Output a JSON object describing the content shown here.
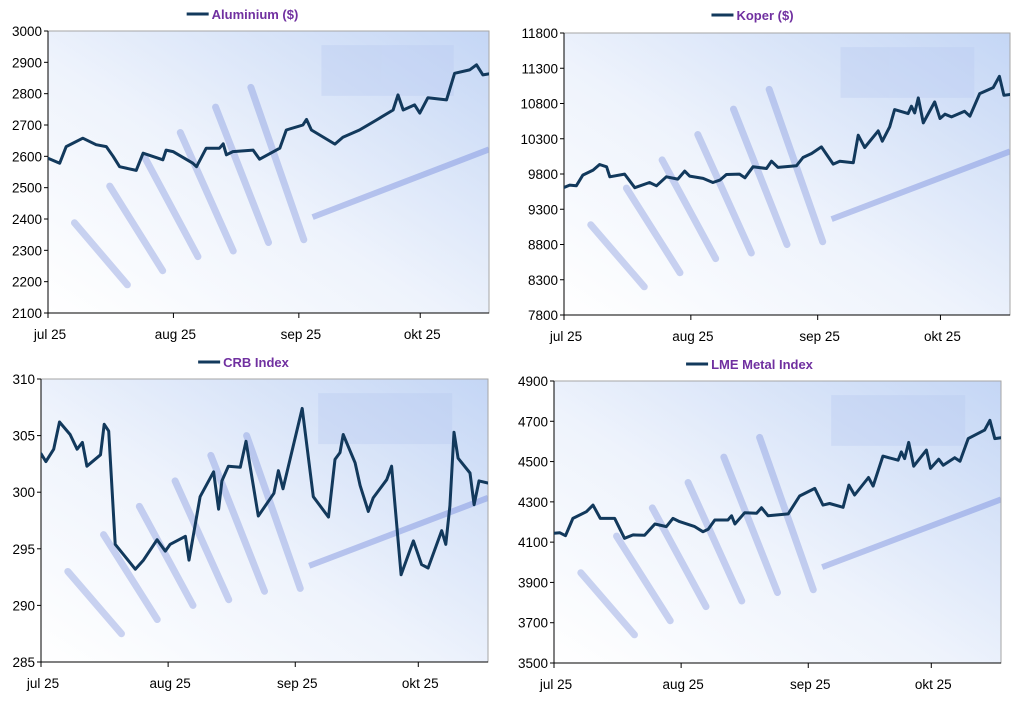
{
  "chart_data": [
    {
      "type": "line",
      "title": "Aluminium ($)",
      "legend": "top-center",
      "xlabel": "",
      "ylabel": "",
      "x_unit": "days since 1 jul",
      "xlim": [
        0,
        109
      ],
      "xticks": [
        {
          "x": 0,
          "label": "jul 25"
        },
        {
          "x": 31,
          "label": "aug 25"
        },
        {
          "x": 62,
          "label": "sep 25"
        },
        {
          "x": 92,
          "label": "okt 25"
        }
      ],
      "ylim": [
        2100,
        3000
      ],
      "yticks": [
        2100,
        2200,
        2300,
        2400,
        2500,
        2600,
        2700,
        2800,
        2900,
        3000
      ],
      "series": [
        {
          "name": "Aluminium ($)",
          "color": "#12395C",
          "x": [
            0,
            2.9,
            4.5,
            8.6,
            11.9,
            14.4,
            16.1,
            17.7,
            21.8,
            23.5,
            28.4,
            29.2,
            30.9,
            35.8,
            36.7,
            39.1,
            42.4,
            43.3,
            44.1,
            45.7,
            50.7,
            52.3,
            57.3,
            58.9,
            63,
            63.9,
            65.1,
            70.9,
            72.9,
            77,
            81.2,
            85.3,
            86.5,
            87.8,
            90.6,
            91.9,
            93.9,
            98.5,
            100.5,
            104.2,
            105.9,
            107.5,
            109
          ],
          "values": [
            2594,
            2578,
            2631,
            2658,
            2637,
            2631,
            2600,
            2567,
            2555,
            2610,
            2589,
            2620,
            2615,
            2578,
            2567,
            2626,
            2626,
            2640,
            2605,
            2615,
            2620,
            2591,
            2626,
            2684,
            2700,
            2718,
            2684,
            2639,
            2661,
            2684,
            2716,
            2748,
            2796,
            2748,
            2764,
            2738,
            2787,
            2780,
            2865,
            2876,
            2892,
            2860,
            2863
          ]
        }
      ]
    },
    {
      "type": "line",
      "title": "Koper ($)",
      "legend": "top-center",
      "xlabel": "",
      "ylabel": "",
      "x_unit": "days since 1 jul",
      "xlim": [
        0,
        109
      ],
      "xticks": [
        {
          "x": 0,
          "label": "jul 25"
        },
        {
          "x": 31,
          "label": "aug 25"
        },
        {
          "x": 62,
          "label": "sep 25"
        },
        {
          "x": 92,
          "label": "okt 25"
        }
      ],
      "ylim": [
        7800,
        11800
      ],
      "yticks": [
        7800,
        8300,
        8800,
        9300,
        9800,
        10300,
        10800,
        11300,
        11800
      ],
      "series": [
        {
          "name": "Koper ($)",
          "color": "#12395C",
          "x": [
            0,
            1.4,
            3,
            4.6,
            7.1,
            8.7,
            10.4,
            11.2,
            14.8,
            17.3,
            20.9,
            22.6,
            25,
            27.8,
            29.5,
            30.7,
            34,
            36.4,
            38.1,
            39.7,
            42.9,
            44.2,
            46.2,
            49.5,
            50.7,
            52.3,
            56.8,
            58.4,
            60.5,
            62.9,
            65.8,
            67.4,
            70.7,
            71.9,
            73.5,
            76.8,
            77.8,
            79.6,
            80.8,
            84.1,
            84.9,
            85.7,
            86.6,
            87.8,
            90.6,
            91.9,
            93.1,
            94.7,
            97.9,
            99.2,
            101.6,
            104.9,
            106.4,
            107.5,
            109
          ],
          "values": [
            9609,
            9642,
            9633,
            9784,
            9855,
            9935,
            9902,
            9760,
            9798,
            9605,
            9680,
            9633,
            9760,
            9727,
            9841,
            9770,
            9737,
            9680,
            9713,
            9793,
            9798,
            9746,
            9902,
            9878,
            9982,
            9893,
            9916,
            10034,
            10091,
            10185,
            9940,
            9982,
            9959,
            10350,
            10176,
            10412,
            10265,
            10469,
            10714,
            10657,
            10761,
            10667,
            10879,
            10525,
            10823,
            10587,
            10648,
            10610,
            10690,
            10620,
            10941,
            11026,
            11186,
            10917,
            10927
          ]
        }
      ]
    },
    {
      "type": "line",
      "title": "CRB Index",
      "legend": "top-center",
      "xlabel": "",
      "ylabel": "",
      "x_unit": "days since 1 jul",
      "xlim": [
        0,
        109
      ],
      "xticks": [
        {
          "x": 0,
          "label": "jul 25"
        },
        {
          "x": 31,
          "label": "aug 25"
        },
        {
          "x": 62,
          "label": "sep 25"
        },
        {
          "x": 92,
          "label": "okt 25"
        }
      ],
      "ylim": [
        285,
        310
      ],
      "yticks": [
        285,
        290,
        295,
        300,
        305,
        310
      ],
      "series": [
        {
          "name": "CRB Index",
          "color": "#12395C",
          "x": [
            0,
            1.2,
            3.1,
            4.5,
            7.1,
            8.8,
            10.1,
            11.2,
            14.5,
            15.4,
            16.5,
            18.1,
            23,
            25,
            28.3,
            30.3,
            31.5,
            35.2,
            36.1,
            38.8,
            42.1,
            43.3,
            44.1,
            45.7,
            48.6,
            50,
            53,
            56.8,
            57.9,
            59,
            63.7,
            66.4,
            70.1,
            71.7,
            72.9,
            73.7,
            76.6,
            77.8,
            79.8,
            81,
            84.3,
            85.5,
            87.8,
            90.8,
            92.8,
            94.4,
            97.7,
            98.7,
            99.7,
            100.7,
            101.7,
            104.6,
            105.6,
            106.8,
            109
          ],
          "values": [
            303.4,
            302.7,
            303.8,
            306.2,
            305.1,
            303.8,
            304.4,
            302.3,
            303.3,
            306.0,
            305.4,
            295.4,
            293.2,
            294.0,
            295.8,
            294.8,
            295.4,
            296.1,
            294.0,
            299.6,
            301.8,
            298.5,
            301.0,
            302.3,
            302.2,
            304.5,
            297.9,
            299.9,
            301.9,
            300.3,
            307.4,
            299.6,
            297.8,
            302.9,
            303.5,
            305.1,
            302.6,
            300.6,
            298.3,
            299.5,
            301.1,
            302.3,
            292.7,
            295.7,
            293.6,
            293.3,
            296.6,
            295.4,
            298.8,
            305.3,
            303.0,
            301.7,
            298.9,
            301.0,
            300.8
          ]
        }
      ]
    },
    {
      "type": "line",
      "title": "LME Metal Index",
      "legend": "top-center",
      "xlabel": "",
      "ylabel": "",
      "x_unit": "days since 1 jul",
      "xlim": [
        0,
        109
      ],
      "xticks": [
        {
          "x": 0,
          "label": "jul 25"
        },
        {
          "x": 31,
          "label": "aug 25"
        },
        {
          "x": 62,
          "label": "sep 25"
        },
        {
          "x": 92,
          "label": "okt 25"
        }
      ],
      "ylim": [
        3500,
        4900
      ],
      "yticks": [
        3500,
        3700,
        3900,
        4100,
        4300,
        4500,
        4700,
        4900
      ],
      "series": [
        {
          "name": "LME Metal Index",
          "color": "#12395C",
          "x": [
            0,
            1.4,
            2.8,
            4.6,
            7.9,
            9.5,
            11.3,
            14.8,
            17.2,
            19.3,
            22.1,
            24.6,
            27.4,
            29,
            30.6,
            34.3,
            36.3,
            37.6,
            39.2,
            42.4,
            43.3,
            44.1,
            46.5,
            49.4,
            50.6,
            52.2,
            57.1,
            59.9,
            63.6,
            65.6,
            67.2,
            70.5,
            71.9,
            73.3,
            76.7,
            77.8,
            80.2,
            83.9,
            84.7,
            85.5,
            86.5,
            87.7,
            90.8,
            91.8,
            93.8,
            94.9,
            97.7,
            99,
            101,
            105,
            106.3,
            107.5,
            109
          ],
          "values": [
            4144,
            4147,
            4132,
            4218,
            4251,
            4284,
            4218,
            4218,
            4119,
            4136,
            4134,
            4190,
            4177,
            4218,
            4202,
            4177,
            4152,
            4164,
            4210,
            4210,
            4231,
            4190,
            4246,
            4243,
            4271,
            4231,
            4240,
            4329,
            4367,
            4284,
            4292,
            4273,
            4383,
            4334,
            4421,
            4378,
            4527,
            4507,
            4548,
            4515,
            4595,
            4477,
            4557,
            4466,
            4512,
            4482,
            4519,
            4502,
            4614,
            4656,
            4705,
            4614,
            4618
          ]
        }
      ]
    }
  ]
}
